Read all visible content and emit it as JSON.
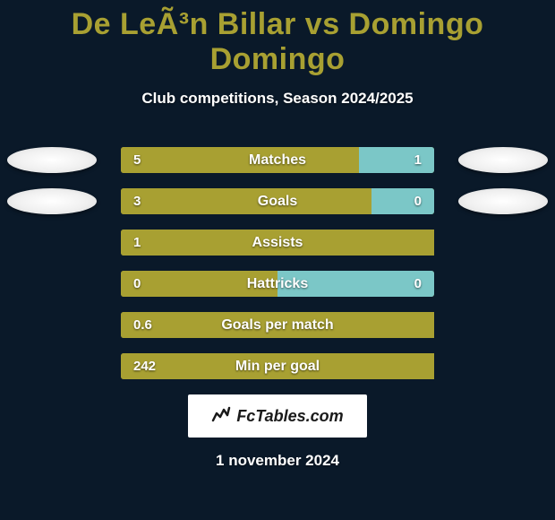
{
  "title": "De LeÃ³n Billar vs Domingo Domingo",
  "subtitle": "Club competitions, Season 2024/2025",
  "colors": {
    "background": "#0a1929",
    "accent": "#a8a032",
    "left_bar": "#a8a032",
    "right_bar": "#7bc7c7",
    "avatar": "#ffffff",
    "text": "#ffffff"
  },
  "stats": [
    {
      "label": "Matches",
      "left_value": "5",
      "right_value": "1",
      "left_pct": 76,
      "right_pct": 24,
      "show_left_avatar": true,
      "show_right_avatar": true
    },
    {
      "label": "Goals",
      "left_value": "3",
      "right_value": "0",
      "left_pct": 80,
      "right_pct": 20,
      "show_left_avatar": true,
      "show_right_avatar": true
    },
    {
      "label": "Assists",
      "left_value": "1",
      "right_value": "",
      "left_pct": 100,
      "right_pct": 0,
      "show_left_avatar": false,
      "show_right_avatar": false
    },
    {
      "label": "Hattricks",
      "left_value": "0",
      "right_value": "0",
      "left_pct": 50,
      "right_pct": 50,
      "show_left_avatar": false,
      "show_right_avatar": false
    },
    {
      "label": "Goals per match",
      "left_value": "0.6",
      "right_value": "",
      "left_pct": 100,
      "right_pct": 0,
      "show_left_avatar": false,
      "show_right_avatar": false
    },
    {
      "label": "Min per goal",
      "left_value": "242",
      "right_value": "",
      "left_pct": 100,
      "right_pct": 0,
      "show_left_avatar": false,
      "show_right_avatar": false
    }
  ],
  "branding": {
    "text": "FcTables.com"
  },
  "date": "1 november 2024"
}
